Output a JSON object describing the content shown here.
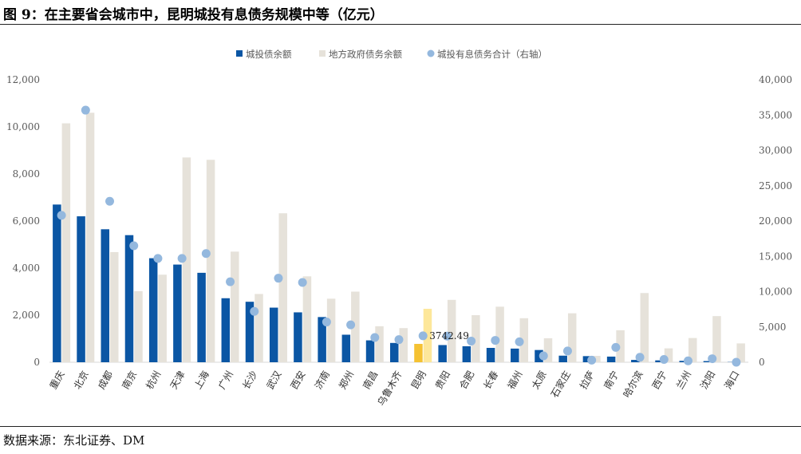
{
  "title": "图 9：在主要省会城市中，昆明城投有息债务规模中等（亿元）",
  "source": "数据来源：东北证券、DM",
  "colors": {
    "city_bond": "#0b56a4",
    "city_bond_highlight": "#f5c232",
    "local_gov": "#e6e2da",
    "local_gov_highlight": "#fde79a",
    "total_dot": "#94b8de",
    "axis_text": "#595959",
    "grid": "#d9d9d9"
  },
  "chart_data": {
    "type": "bar",
    "legend_position": "top",
    "grid": false,
    "categories": [
      "重庆",
      "北京",
      "成都",
      "南京",
      "杭州",
      "天津",
      "上海",
      "广州",
      "长沙",
      "武汉",
      "西安",
      "济南",
      "郑州",
      "南昌",
      "乌鲁木齐",
      "昆明",
      "贵阳",
      "合肥",
      "长春",
      "福州",
      "太原",
      "石家庄",
      "拉萨",
      "南宁",
      "哈尔滨",
      "西宁",
      "兰州",
      "沈阳",
      "海口"
    ],
    "highlight_category": "昆明",
    "y_left": {
      "min": 0,
      "max": 12000,
      "ticks": [
        "0",
        "2,000",
        "4,000",
        "6,000",
        "8,000",
        "10,000",
        "12,000"
      ]
    },
    "y_right": {
      "min": 0,
      "max": 40000,
      "ticks": [
        "0",
        "5,000",
        "10,000",
        "15,000",
        "20,000",
        "25,000",
        "30,000",
        "35,000",
        "40,000"
      ]
    },
    "series": [
      {
        "name": "城投债余额",
        "type": "bar",
        "axis": "left",
        "values": [
          6700,
          6200,
          5650,
          5400,
          4420,
          4150,
          3800,
          2720,
          2570,
          2320,
          2120,
          1920,
          1170,
          930,
          820,
          780,
          730,
          680,
          610,
          580,
          520,
          280,
          260,
          240,
          100,
          80,
          60,
          50,
          10
        ]
      },
      {
        "name": "地方政府债务余额",
        "type": "bar",
        "axis": "left",
        "values": [
          10150,
          10600,
          4680,
          3020,
          3720,
          8700,
          8600,
          4700,
          2900,
          6330,
          3650,
          2700,
          3000,
          1530,
          1450,
          2270,
          2650,
          2000,
          2360,
          1870,
          1020,
          2080,
          270,
          1360,
          2940,
          590,
          1030,
          1960,
          800
        ]
      },
      {
        "name": "城投有息债务合计（右轴）",
        "type": "scatter",
        "axis": "right",
        "values": [
          20800,
          35700,
          22800,
          16500,
          14700,
          14700,
          15400,
          11400,
          7200,
          11900,
          11300,
          5700,
          5300,
          3500,
          3200,
          3742.49,
          3700,
          3000,
          3100,
          2900,
          900,
          1600,
          300,
          2100,
          700,
          400,
          200,
          500,
          0
        ]
      }
    ],
    "annotations": [
      {
        "category": "昆明",
        "series": "城投有息债务合计（右轴）",
        "text": "3742.49"
      }
    ]
  }
}
